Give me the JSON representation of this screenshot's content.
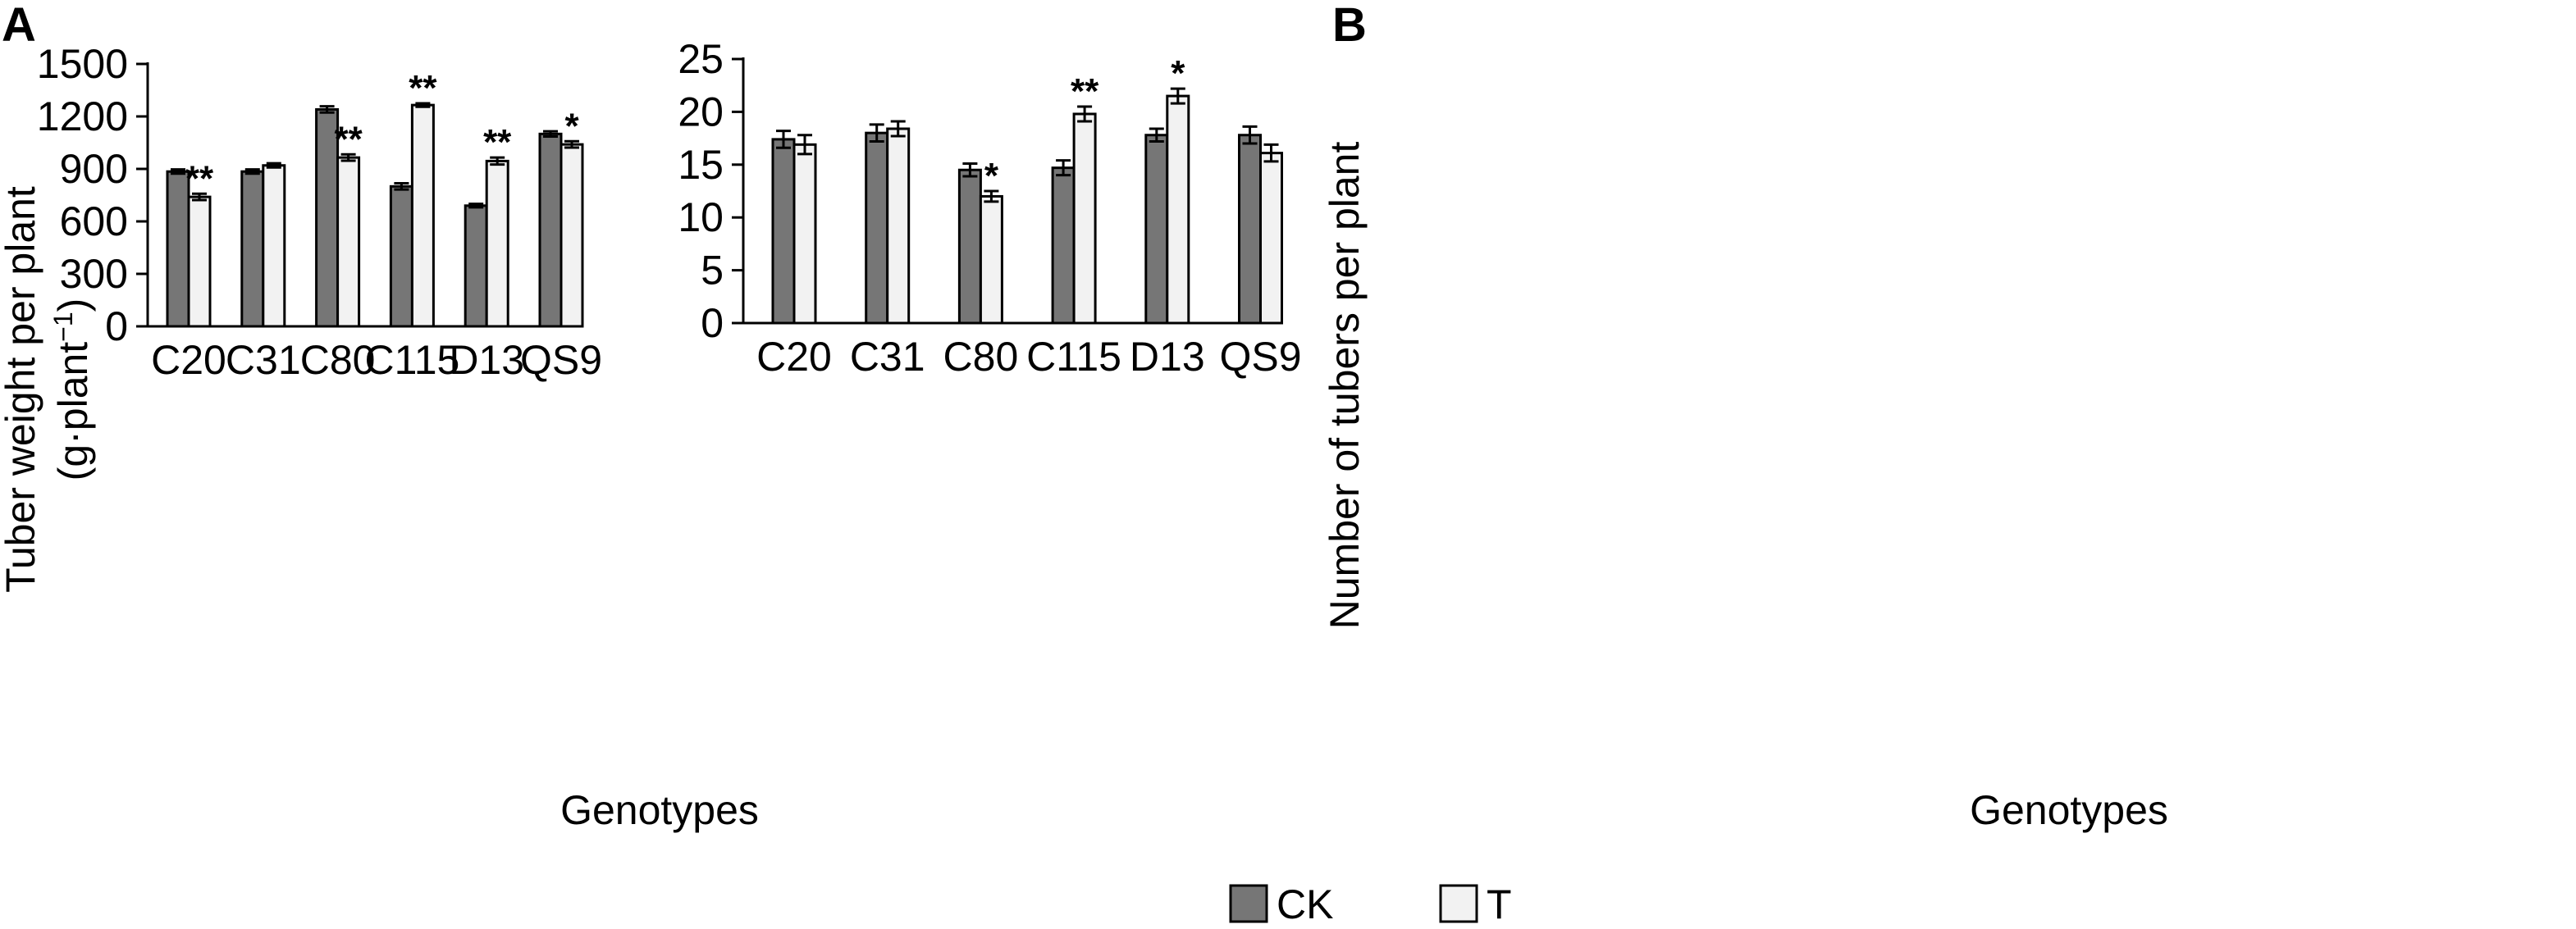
{
  "legend": {
    "position": "bottom-center",
    "items": [
      {
        "label": "CK",
        "color": "#767676"
      },
      {
        "label": "T",
        "color": "#f2f2f2"
      }
    ]
  },
  "chart_data": [
    {
      "panel_label": "A",
      "type": "bar",
      "title": "",
      "xlabel": "Genotypes",
      "ylabel_main": "Tuber weight per plant",
      "ylabel_unit_prefix": "(g·plant",
      "ylabel_unit_sup": "−1",
      "ylabel_unit_suffix": ")",
      "ylim": [
        0,
        1500
      ],
      "yticks": [
        0,
        300,
        600,
        900,
        1200,
        1500
      ],
      "grid": false,
      "categories": [
        "C20",
        "C31",
        "C80",
        "C115",
        "D13",
        "QS9"
      ],
      "series": [
        {
          "name": "CK",
          "color": "#767676",
          "values": [
            885,
            885,
            1240,
            800,
            690,
            1100
          ],
          "errors": [
            12,
            12,
            18,
            18,
            10,
            15
          ],
          "significance": [
            "",
            "",
            "",
            "",
            "",
            ""
          ]
        },
        {
          "name": "T",
          "color": "#f2f2f2",
          "values": [
            740,
            920,
            965,
            1265,
            945,
            1040
          ],
          "errors": [
            18,
            12,
            18,
            10,
            20,
            18
          ],
          "significance": [
            "**",
            "",
            "**",
            "**",
            "**",
            "*"
          ]
        }
      ]
    },
    {
      "panel_label": "B",
      "type": "bar",
      "title": "",
      "xlabel": "Genotypes",
      "ylabel_main": "Number of tubers per plant",
      "ylim": [
        0,
        25
      ],
      "yticks": [
        0,
        5,
        10,
        15,
        20,
        25
      ],
      "grid": false,
      "categories": [
        "C20",
        "C31",
        "C80",
        "C115",
        "D13",
        "QS9"
      ],
      "series": [
        {
          "name": "CK",
          "color": "#767676",
          "values": [
            17.4,
            18.0,
            14.5,
            14.7,
            17.8,
            17.8
          ],
          "errors": [
            0.8,
            0.8,
            0.6,
            0.7,
            0.6,
            0.8
          ],
          "significance": [
            "",
            "",
            "",
            "",
            "",
            ""
          ]
        },
        {
          "name": "T",
          "color": "#f2f2f2",
          "values": [
            16.9,
            18.4,
            12.0,
            19.8,
            21.5,
            16.1
          ],
          "errors": [
            0.9,
            0.7,
            0.5,
            0.7,
            0.7,
            0.8
          ],
          "significance": [
            "",
            "",
            "*",
            "**",
            "*",
            ""
          ]
        }
      ]
    }
  ]
}
